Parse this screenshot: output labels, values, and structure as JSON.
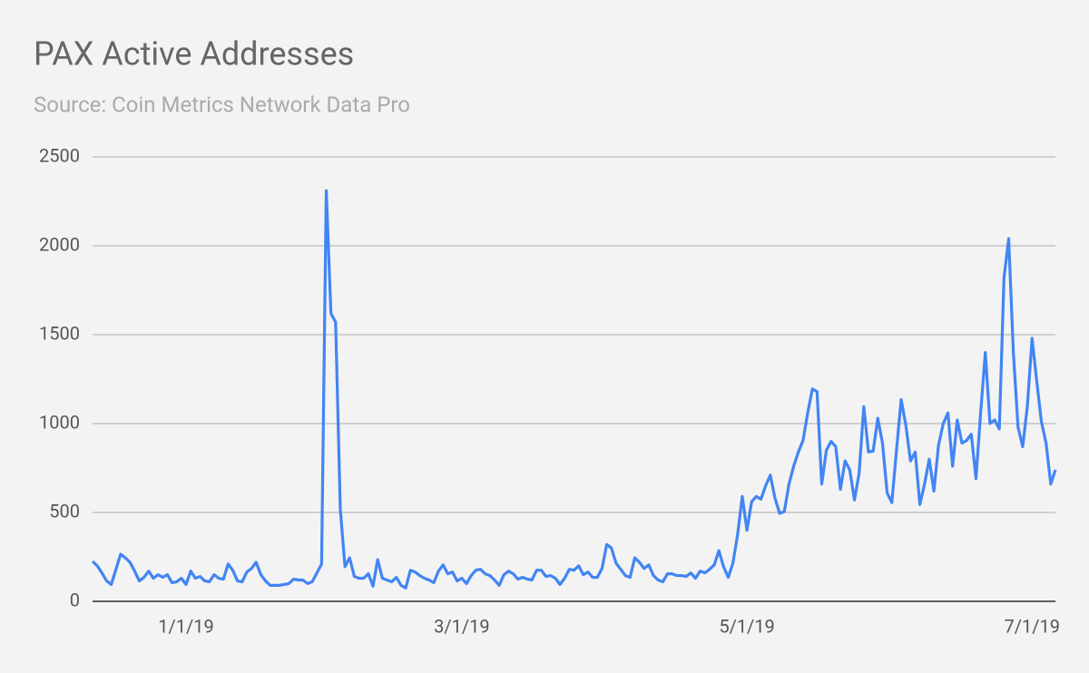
{
  "chart_data": {
    "type": "line",
    "title": "PAX Active Addresses",
    "subtitle": "Source: Coin Metrics Network Data Pro",
    "x": [
      "2018-12-12",
      "2018-12-13",
      "2018-12-14",
      "2018-12-15",
      "2018-12-16",
      "2018-12-17",
      "2018-12-18",
      "2018-12-19",
      "2018-12-20",
      "2018-12-21",
      "2018-12-22",
      "2018-12-23",
      "2018-12-24",
      "2018-12-25",
      "2018-12-26",
      "2018-12-27",
      "2018-12-28",
      "2018-12-29",
      "2018-12-30",
      "2018-12-31",
      "2019-01-01",
      "2019-01-02",
      "2019-01-03",
      "2019-01-04",
      "2019-01-05",
      "2019-01-06",
      "2019-01-07",
      "2019-01-08",
      "2019-01-09",
      "2019-01-10",
      "2019-01-11",
      "2019-01-12",
      "2019-01-13",
      "2019-01-14",
      "2019-01-15",
      "2019-01-16",
      "2019-01-17",
      "2019-01-18",
      "2019-01-19",
      "2019-01-20",
      "2019-01-21",
      "2019-01-22",
      "2019-01-23",
      "2019-01-24",
      "2019-01-25",
      "2019-01-26",
      "2019-01-27",
      "2019-01-28",
      "2019-01-29",
      "2019-01-30",
      "2019-01-31",
      "2019-02-01",
      "2019-02-02",
      "2019-02-03",
      "2019-02-04",
      "2019-02-05",
      "2019-02-06",
      "2019-02-07",
      "2019-02-08",
      "2019-02-09",
      "2019-02-10",
      "2019-02-11",
      "2019-02-12",
      "2019-02-13",
      "2019-02-14",
      "2019-02-15",
      "2019-02-16",
      "2019-02-17",
      "2019-02-18",
      "2019-02-19",
      "2019-02-20",
      "2019-02-21",
      "2019-02-22",
      "2019-02-23",
      "2019-02-24",
      "2019-02-25",
      "2019-02-26",
      "2019-02-27",
      "2019-02-28",
      "2019-03-01",
      "2019-03-02",
      "2019-03-03",
      "2019-03-04",
      "2019-03-05",
      "2019-03-06",
      "2019-03-07",
      "2019-03-08",
      "2019-03-09",
      "2019-03-10",
      "2019-03-11",
      "2019-03-12",
      "2019-03-13",
      "2019-03-14",
      "2019-03-15",
      "2019-03-16",
      "2019-03-17",
      "2019-03-18",
      "2019-03-19",
      "2019-03-20",
      "2019-03-21",
      "2019-03-22",
      "2019-03-23",
      "2019-03-24",
      "2019-03-25",
      "2019-03-26",
      "2019-03-27",
      "2019-03-28",
      "2019-03-29",
      "2019-03-30",
      "2019-03-31",
      "2019-04-01",
      "2019-04-02",
      "2019-04-03",
      "2019-04-04",
      "2019-04-05",
      "2019-04-06",
      "2019-04-07",
      "2019-04-08",
      "2019-04-09",
      "2019-04-10",
      "2019-04-11",
      "2019-04-12",
      "2019-04-13",
      "2019-04-14",
      "2019-04-15",
      "2019-04-16",
      "2019-04-17",
      "2019-04-18",
      "2019-04-19",
      "2019-04-20",
      "2019-04-21",
      "2019-04-22",
      "2019-04-23",
      "2019-04-24",
      "2019-04-25",
      "2019-04-26",
      "2019-04-27",
      "2019-04-28",
      "2019-04-29",
      "2019-04-30",
      "2019-05-01",
      "2019-05-02",
      "2019-05-03",
      "2019-05-04",
      "2019-05-05",
      "2019-05-06",
      "2019-05-07",
      "2019-05-08",
      "2019-05-09",
      "2019-05-10",
      "2019-05-11",
      "2019-05-12",
      "2019-05-13",
      "2019-05-14",
      "2019-05-15",
      "2019-05-16",
      "2019-05-17",
      "2019-05-18",
      "2019-05-19",
      "2019-05-20",
      "2019-05-21",
      "2019-05-22",
      "2019-05-23",
      "2019-05-24",
      "2019-05-25",
      "2019-05-26",
      "2019-05-27",
      "2019-05-28",
      "2019-05-29",
      "2019-05-30",
      "2019-05-31",
      "2019-06-01",
      "2019-06-02",
      "2019-06-03",
      "2019-06-04",
      "2019-06-05",
      "2019-06-06",
      "2019-06-07",
      "2019-06-08",
      "2019-06-09",
      "2019-06-10",
      "2019-06-11",
      "2019-06-12",
      "2019-06-13",
      "2019-06-14",
      "2019-06-15",
      "2019-06-16",
      "2019-06-17",
      "2019-06-18",
      "2019-06-19",
      "2019-06-20",
      "2019-06-21",
      "2019-06-22",
      "2019-06-23",
      "2019-06-24",
      "2019-06-25",
      "2019-06-26",
      "2019-06-27",
      "2019-06-28",
      "2019-06-29",
      "2019-06-30",
      "2019-07-01",
      "2019-07-02",
      "2019-07-03",
      "2019-07-04",
      "2019-07-05",
      "2019-07-06"
    ],
    "series": [
      {
        "name": "PAX Active Addresses",
        "color": "#4285f4",
        "values": [
          225,
          200,
          160,
          115,
          95,
          180,
          265,
          245,
          220,
          170,
          115,
          135,
          170,
          130,
          150,
          135,
          150,
          105,
          110,
          130,
          95,
          170,
          130,
          140,
          115,
          110,
          150,
          130,
          125,
          210,
          175,
          115,
          110,
          165,
          185,
          220,
          150,
          115,
          90,
          90,
          90,
          95,
          100,
          125,
          120,
          120,
          100,
          110,
          160,
          210,
          2310,
          1620,
          1570,
          520,
          195,
          245,
          140,
          130,
          130,
          155,
          85,
          235,
          130,
          120,
          110,
          135,
          90,
          75,
          175,
          165,
          145,
          130,
          120,
          105,
          170,
          205,
          155,
          165,
          115,
          130,
          100,
          145,
          175,
          180,
          155,
          145,
          120,
          90,
          150,
          170,
          155,
          125,
          135,
          125,
          120,
          175,
          175,
          140,
          145,
          130,
          95,
          130,
          180,
          175,
          200,
          150,
          165,
          135,
          135,
          185,
          320,
          300,
          215,
          180,
          145,
          135,
          245,
          220,
          185,
          205,
          145,
          120,
          110,
          155,
          155,
          145,
          145,
          140,
          160,
          130,
          170,
          160,
          180,
          205,
          285,
          195,
          135,
          215,
          375,
          590,
          400,
          560,
          590,
          575,
          650,
          710,
          580,
          495,
          505,
          660,
          760,
          840,
          905,
          1060,
          1195,
          1180,
          660,
          850,
          900,
          870,
          630,
          790,
          740,
          570,
          720,
          1095,
          840,
          845,
          1030,
          890,
          610,
          555,
          850,
          1135,
          990,
          790,
          840,
          545,
          660,
          800,
          620,
          880,
          1000,
          1060,
          760,
          1020,
          890,
          905,
          940,
          690,
          1060,
          1400,
          1000,
          1020,
          970,
          1820,
          2040,
          1400,
          980,
          870,
          1100,
          1480,
          1240,
          1010,
          890,
          660,
          740
        ]
      }
    ],
    "xlim": [
      "2018-12-12",
      "2019-07-06"
    ],
    "xticks": [
      {
        "value": "2019-01-01",
        "label": "1/1/19"
      },
      {
        "value": "2019-03-01",
        "label": "3/1/19"
      },
      {
        "value": "2019-05-01",
        "label": "5/1/19"
      },
      {
        "value": "2019-07-01",
        "label": "7/1/19"
      }
    ],
    "ylim": [
      0,
      2500
    ],
    "yticks": [
      0,
      500,
      1000,
      1500,
      2000,
      2500
    ],
    "grid": true
  }
}
